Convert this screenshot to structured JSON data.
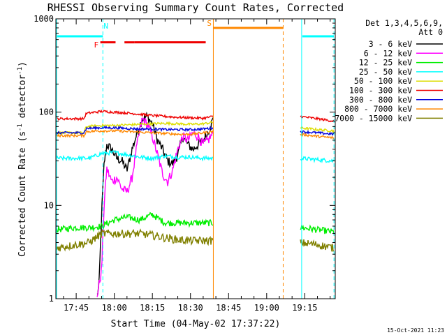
{
  "chart_data": {
    "type": "line",
    "title": "RHESSI Observing Summary Count Rates, Corrected",
    "xlabel": "Start Time (04-May-02 17:37:22)",
    "ylabel_main": "Corrected Count Rate (s",
    "ylabel_sup1": "-1",
    "ylabel_mid": " detector",
    "ylabel_sup2": "-1",
    "ylabel_end": ")",
    "yscale": "log",
    "ylim": [
      1,
      1000
    ],
    "xlim_min": [
      -8,
      102
    ],
    "x_ticks": [
      {
        "m": 0,
        "label": "17:45"
      },
      {
        "m": 15,
        "label": "18:00"
      },
      {
        "m": 30,
        "label": "18:15"
      },
      {
        "m": 45,
        "label": "18:30"
      },
      {
        "m": 60,
        "label": "18:45"
      },
      {
        "m": 75,
        "label": "19:00"
      },
      {
        "m": 90,
        "label": "19:15"
      }
    ],
    "y_ticks": [
      {
        "v": 1,
        "label": "1"
      },
      {
        "v": 10,
        "label": "10"
      },
      {
        "v": 100,
        "label": "100"
      },
      {
        "v": 1000,
        "label": "1000"
      }
    ],
    "legend": {
      "placement": "right",
      "header1": "Det 1,3,4,5,6,9,",
      "header2": "Att 0",
      "entries": [
        {
          "name": "3 - 6 keV",
          "color": "#000000"
        },
        {
          "name": "6 - 12 keV",
          "color": "#ff00ff"
        },
        {
          "name": "12 - 25 keV",
          "color": "#00ee00"
        },
        {
          "name": "25 - 50 keV",
          "color": "#00ffff"
        },
        {
          "name": "50 - 100 keV",
          "color": "#dddd00"
        },
        {
          "name": "100 - 300 keV",
          "color": "#ee0000"
        },
        {
          "name": "300 - 800 keV",
          "color": "#0000dd"
        },
        {
          "name": "800 - 7000 keV",
          "color": "#ff8800"
        },
        {
          "name": "7000 - 15000 keV",
          "color": "#808000"
        }
      ]
    },
    "night_intervals": [
      [
        -8,
        10.5
      ],
      [
        88.5,
        101.5
      ]
    ],
    "saa_intervals": [
      [
        54,
        81.5
      ]
    ],
    "flare_bars": [
      [
        9.5,
        15.5
      ],
      [
        19,
        23
      ],
      [
        23,
        51
      ]
    ],
    "markers": [
      {
        "label": "N",
        "m": 10.8,
        "v": 840,
        "color": "#00ffff"
      },
      {
        "label": "F",
        "m": 7,
        "v": 530,
        "color": "#ff0000"
      },
      {
        "label": "S",
        "m": 51.5,
        "v": 900,
        "color": "#ff8800"
      }
    ],
    "data_segments": [
      [
        -8,
        54
      ],
      [
        88,
        101.5
      ]
    ],
    "series": [
      {
        "name": "3 - 6 keV",
        "color": "#000000",
        "x": [
          8,
          9,
          10,
          11,
          12,
          14,
          16,
          18,
          20,
          22,
          24,
          26,
          28,
          30,
          32,
          34,
          36,
          38,
          40,
          42,
          44,
          46,
          48,
          50,
          52,
          54
        ],
        "y": [
          1,
          1.4,
          8,
          28,
          45,
          40,
          32,
          30,
          24,
          40,
          60,
          85,
          90,
          75,
          50,
          40,
          30,
          28,
          35,
          55,
          45,
          40,
          45,
          50,
          62,
          85
        ]
      },
      {
        "name": "6 - 12 keV",
        "color": "#ff00ff",
        "x": [
          8,
          10,
          11,
          12,
          14,
          16,
          18,
          20,
          22,
          24,
          26,
          28,
          30,
          32,
          34,
          36,
          38,
          40,
          42,
          44,
          46,
          48,
          50,
          52,
          54
        ],
        "y": [
          1,
          2,
          10,
          25,
          18,
          20,
          15,
          14,
          20,
          45,
          85,
          75,
          55,
          35,
          22,
          18,
          24,
          40,
          55,
          50,
          60,
          55,
          45,
          50,
          60
        ]
      },
      {
        "name": "12 - 25 keV",
        "color": "#00ee00",
        "x": [
          -8,
          0,
          5,
          10,
          15,
          20,
          25,
          30,
          35,
          40,
          45,
          50,
          54,
          88,
          95,
          101.5
        ],
        "y": [
          5.5,
          5.8,
          5.8,
          6,
          7,
          7.5,
          7,
          8,
          6.5,
          6.5,
          6.5,
          6.5,
          6.5,
          5.8,
          5.5,
          5.2
        ]
      },
      {
        "name": "25 - 50 keV",
        "color": "#00ffff",
        "x": [
          -8,
          0,
          5,
          10,
          15,
          20,
          25,
          30,
          35,
          40,
          45,
          50,
          54,
          88,
          95,
          101.5
        ],
        "y": [
          32,
          32,
          32,
          36,
          37,
          35,
          33,
          32,
          34,
          33,
          33,
          32,
          32,
          32,
          31,
          30
        ]
      },
      {
        "name": "50 - 100 keV",
        "color": "#dddd00",
        "x": [
          -8,
          3,
          4,
          10,
          15,
          20,
          25,
          30,
          35,
          40,
          45,
          50,
          54,
          88,
          95,
          101.5
        ],
        "y": [
          60,
          60,
          70,
          72,
          72,
          73,
          74,
          75,
          76,
          75,
          74,
          75,
          78,
          68,
          65,
          63
        ]
      },
      {
        "name": "100 - 300 keV",
        "color": "#ee0000",
        "x": [
          -8,
          3,
          4,
          10,
          15,
          20,
          25,
          30,
          35,
          40,
          45,
          50,
          54,
          88,
          95,
          101.5
        ],
        "y": [
          85,
          85,
          97,
          102,
          100,
          98,
          95,
          92,
          90,
          88,
          87,
          86,
          90,
          90,
          85,
          80
        ]
      },
      {
        "name": "300 - 800 keV",
        "color": "#0000dd",
        "x": [
          -8,
          3,
          4,
          10,
          15,
          20,
          25,
          30,
          35,
          40,
          45,
          50,
          54,
          88,
          95,
          101.5
        ],
        "y": [
          60,
          60,
          67,
          68,
          68,
          67,
          66,
          66,
          65,
          65,
          65,
          66,
          68,
          62,
          60,
          58
        ]
      },
      {
        "name": "800 - 7000 keV",
        "color": "#ff8800",
        "x": [
          -8,
          3,
          4,
          10,
          15,
          20,
          25,
          30,
          35,
          40,
          45,
          50,
          54,
          88,
          95,
          101.5
        ],
        "y": [
          56,
          56,
          62,
          63,
          63,
          62,
          61,
          60,
          59,
          58,
          58,
          60,
          62,
          58,
          55,
          53
        ]
      },
      {
        "name": "7000 - 15000 keV",
        "color": "#808000",
        "x": [
          -8,
          0,
          5,
          10,
          15,
          20,
          25,
          30,
          35,
          40,
          45,
          50,
          54,
          88,
          95,
          101.5
        ],
        "y": [
          3.5,
          3.8,
          4,
          5,
          5,
          5,
          5,
          4.8,
          4.5,
          4.3,
          4.2,
          4.2,
          4.2,
          4,
          3.8,
          3.5
        ]
      }
    ]
  },
  "timestamp": "15-Oct-2021 11:23"
}
